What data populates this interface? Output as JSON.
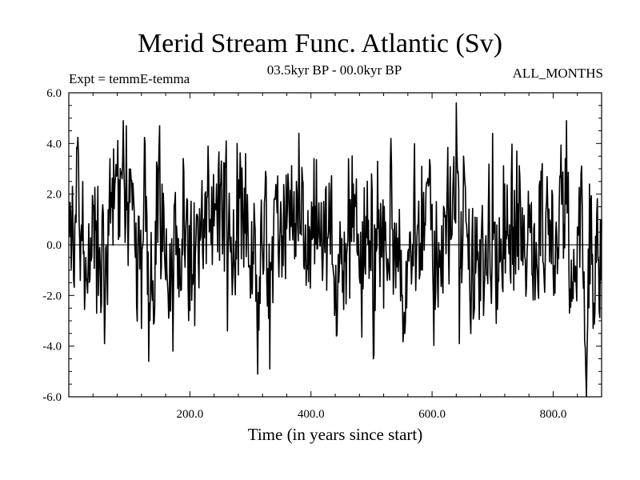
{
  "chart_data": {
    "type": "line",
    "title": "Merid Stream Func. Atlantic (Sv)",
    "subtitle": "03.5kyr BP - 00.0kyr BP",
    "experiment_label": "Expt = temmE-temma",
    "period_label": "ALL_MONTHS",
    "xlabel": "Time (in years since start)",
    "ylabel": "",
    "xlim": [
      0,
      880
    ],
    "ylim": [
      -6,
      6
    ],
    "x_ticks": [
      200,
      400,
      600,
      800
    ],
    "x_tick_labels": [
      "200.0",
      "400.0",
      "600.0",
      "800.0"
    ],
    "y_ticks": [
      6,
      4,
      2,
      0,
      -2,
      -4,
      -6
    ],
    "y_tick_labels": [
      "6.0",
      "4.0",
      "2.0",
      "0.0",
      "-2.0",
      "-4.0",
      "-6.0"
    ],
    "reference_line": 0,
    "series": [
      {
        "name": "Merid Stream Func. Atlantic",
        "x_start": 1,
        "x_step": 1,
        "key_points": [
          [
            1,
            0.3
          ],
          [
            8,
            -1.4
          ],
          [
            14,
            3.8
          ],
          [
            23,
            2.5
          ],
          [
            28,
            -0.5
          ],
          [
            40,
            1.5
          ],
          [
            46,
            -2.7
          ],
          [
            58,
            -1.5
          ],
          [
            59,
            -3.9
          ],
          [
            68,
            3.4
          ],
          [
            90,
            4.9
          ],
          [
            95,
            4.7
          ],
          [
            110,
            -0.5
          ],
          [
            120,
            -3.3
          ],
          [
            126,
            4.0
          ],
          [
            132,
            -4.6
          ],
          [
            150,
            4.7
          ],
          [
            165,
            -2.9
          ],
          [
            172,
            -4.2
          ],
          [
            190,
            2.9
          ],
          [
            200,
            -2.6
          ],
          [
            215,
            -1.7
          ],
          [
            230,
            3.9
          ],
          [
            260,
            4.1
          ],
          [
            262,
            -3.4
          ],
          [
            278,
            4.0
          ],
          [
            292,
            3.6
          ],
          [
            300,
            -2.1
          ],
          [
            312,
            -5.1
          ],
          [
            325,
            2.9
          ],
          [
            332,
            -4.9
          ],
          [
            350,
            1.7
          ],
          [
            362,
            2.8
          ],
          [
            372,
            2.1
          ],
          [
            380,
            4.4
          ],
          [
            392,
            -1.6
          ],
          [
            405,
            3.4
          ],
          [
            425,
            2.3
          ],
          [
            442,
            -3.6
          ],
          [
            470,
            2.4
          ],
          [
            480,
            -1.3
          ],
          [
            500,
            2.8
          ],
          [
            503,
            -4.5
          ],
          [
            510,
            3.3
          ],
          [
            520,
            -2.5
          ],
          [
            532,
            4.2
          ],
          [
            540,
            -1.7
          ],
          [
            555,
            -3.5
          ],
          [
            570,
            2.4
          ],
          [
            600,
            1.6
          ],
          [
            602,
            -2.0
          ],
          [
            640,
            5.6
          ],
          [
            645,
            -3.9
          ],
          [
            652,
            3.5
          ],
          [
            670,
            -2.5
          ],
          [
            680,
            -2.2
          ],
          [
            700,
            4.4
          ],
          [
            706,
            -3.1
          ],
          [
            720,
            2.4
          ],
          [
            740,
            3.7
          ],
          [
            756,
            -1.6
          ],
          [
            780,
            2.9
          ],
          [
            800,
            -1.1
          ],
          [
            815,
            2.3
          ],
          [
            822,
            4.9
          ],
          [
            830,
            -0.6
          ],
          [
            840,
            0.7
          ],
          [
            846,
            2.8
          ],
          [
            852,
            -3.8
          ],
          [
            855,
            -6.2
          ],
          [
            860,
            2.4
          ],
          [
            866,
            -3.3
          ],
          [
            872,
            1.2
          ],
          [
            876,
            -2.6
          ],
          [
            880,
            1.0
          ]
        ]
      }
    ]
  }
}
